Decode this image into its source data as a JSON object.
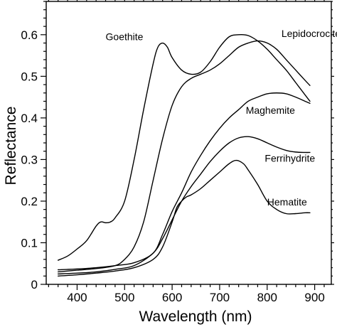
{
  "chart_data": {
    "type": "line",
    "xlabel": "Wavelength (nm)",
    "ylabel": "Reflectance",
    "xlim": [
      335,
      935
    ],
    "ylim": [
      0,
      0.68
    ],
    "xticks": [
      400,
      500,
      600,
      700,
      800,
      900
    ],
    "yticks": [
      0,
      0.1,
      0.2,
      0.3,
      0.4,
      0.5,
      0.6
    ],
    "ytick_labels": [
      "0",
      "0.1",
      "0.2",
      "0.3",
      "0.4",
      "0.5",
      "0.6"
    ],
    "grid": false,
    "series": [
      {
        "name": "Goethite",
        "x": [
          360,
          380,
          400,
          420,
          440,
          450,
          460,
          470,
          480,
          500,
          520,
          540,
          560,
          570,
          580,
          590,
          600,
          620,
          640,
          660,
          680,
          700,
          720,
          740,
          760,
          780,
          800,
          820,
          840,
          860,
          880,
          890
        ],
        "y": [
          0.058,
          0.068,
          0.085,
          0.105,
          0.14,
          0.15,
          0.148,
          0.15,
          0.16,
          0.2,
          0.3,
          0.42,
          0.53,
          0.57,
          0.58,
          0.57,
          0.545,
          0.515,
          0.505,
          0.51,
          0.535,
          0.57,
          0.595,
          0.6,
          0.598,
          0.585,
          0.565,
          0.54,
          0.515,
          0.485,
          0.455,
          0.44
        ]
      },
      {
        "name": "Lepidocrocite",
        "x": [
          360,
          400,
          440,
          480,
          500,
          520,
          540,
          560,
          580,
          600,
          620,
          640,
          660,
          680,
          700,
          720,
          740,
          760,
          780,
          800,
          820,
          840,
          860,
          880,
          890
        ],
        "y": [
          0.03,
          0.034,
          0.038,
          0.045,
          0.06,
          0.09,
          0.15,
          0.25,
          0.35,
          0.43,
          0.475,
          0.495,
          0.505,
          0.515,
          0.53,
          0.55,
          0.57,
          0.58,
          0.585,
          0.58,
          0.565,
          0.54,
          0.515,
          0.49,
          0.478
        ]
      },
      {
        "name": "Maghemite",
        "x": [
          360,
          400,
          440,
          480,
          520,
          560,
          580,
          600,
          620,
          640,
          660,
          680,
          700,
          720,
          740,
          760,
          780,
          800,
          820,
          840,
          860,
          880,
          890
        ],
        "y": [
          0.035,
          0.037,
          0.04,
          0.045,
          0.052,
          0.075,
          0.12,
          0.175,
          0.22,
          0.27,
          0.31,
          0.345,
          0.375,
          0.4,
          0.42,
          0.44,
          0.45,
          0.458,
          0.46,
          0.458,
          0.45,
          0.44,
          0.435
        ]
      },
      {
        "name": "Ferrihydrite",
        "x": [
          360,
          400,
          440,
          480,
          520,
          560,
          580,
          600,
          620,
          640,
          660,
          680,
          700,
          720,
          740,
          760,
          780,
          800,
          820,
          840,
          860,
          880,
          890
        ],
        "y": [
          0.025,
          0.027,
          0.03,
          0.036,
          0.045,
          0.075,
          0.11,
          0.155,
          0.2,
          0.235,
          0.265,
          0.295,
          0.32,
          0.34,
          0.352,
          0.355,
          0.35,
          0.34,
          0.33,
          0.322,
          0.318,
          0.317,
          0.317
        ]
      },
      {
        "name": "Hematite",
        "x": [
          360,
          400,
          440,
          480,
          520,
          560,
          580,
          600,
          610,
          620,
          630,
          640,
          660,
          680,
          700,
          720,
          735,
          750,
          760,
          780,
          800,
          820,
          840,
          860,
          880,
          890
        ],
        "y": [
          0.02,
          0.023,
          0.027,
          0.032,
          0.04,
          0.06,
          0.09,
          0.15,
          0.185,
          0.2,
          0.21,
          0.215,
          0.23,
          0.25,
          0.27,
          0.29,
          0.298,
          0.29,
          0.275,
          0.24,
          0.2,
          0.18,
          0.17,
          0.17,
          0.172,
          0.172
        ]
      }
    ],
    "annotations": [
      {
        "text": "Goethite",
        "series": "Goethite",
        "x": 460,
        "y": 0.587
      },
      {
        "text": "Lepidocrocite",
        "series": "Lepidocrocite",
        "x": 830,
        "y": 0.595
      },
      {
        "text": "Maghemite",
        "series": "Maghemite",
        "x": 755,
        "y": 0.41
      },
      {
        "text": "Ferrihydrite",
        "series": "Ferrihydrite",
        "x": 795,
        "y": 0.295
      },
      {
        "text": "Hematite",
        "series": "Hematite",
        "x": 800,
        "y": 0.19
      }
    ]
  }
}
